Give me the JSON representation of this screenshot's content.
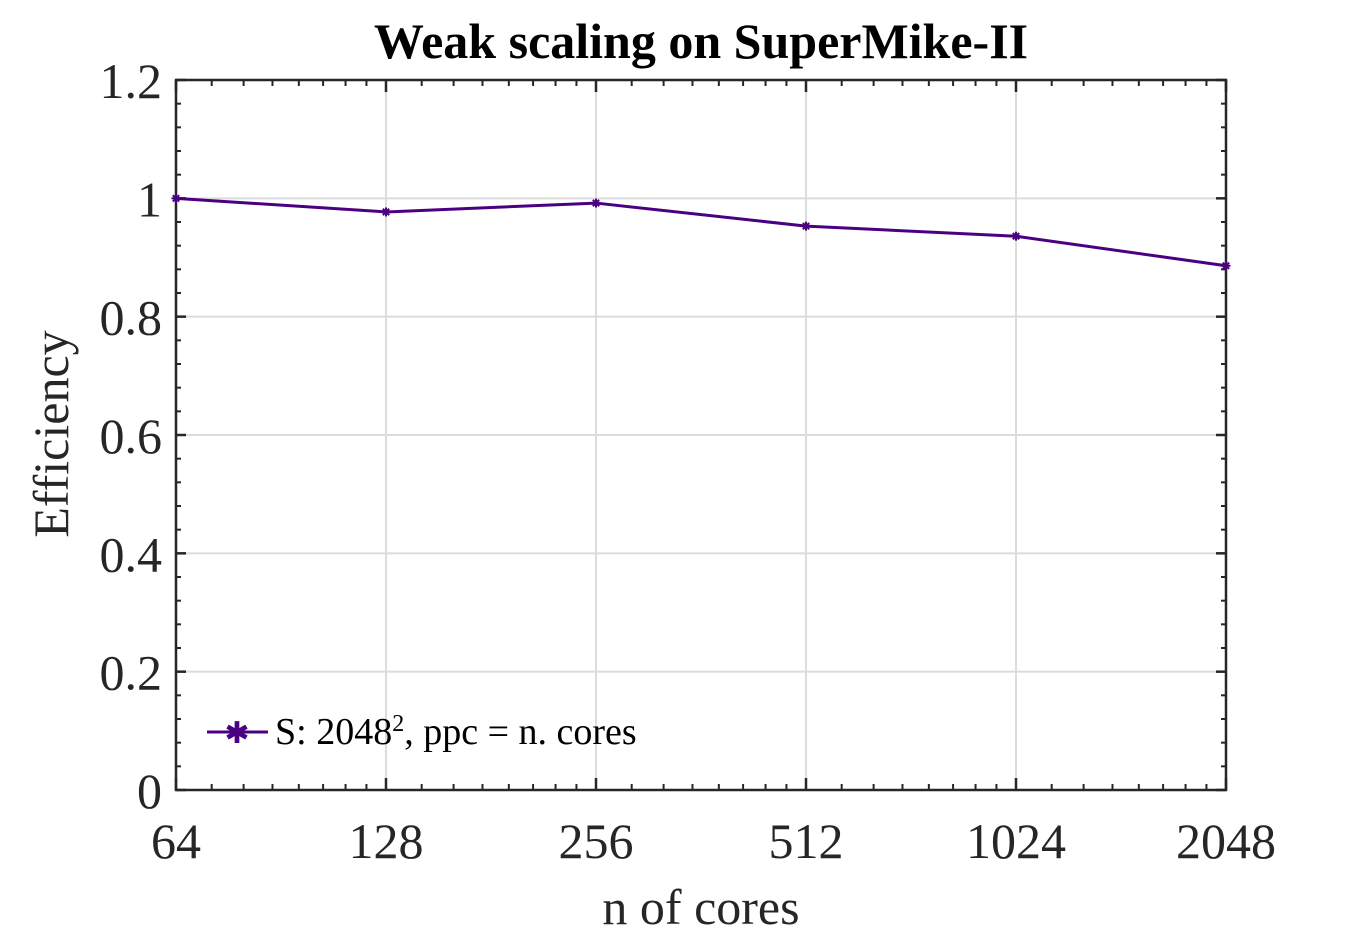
{
  "chart_data": {
    "type": "line",
    "title": "Weak scaling on SuperMike-II",
    "xlabel": "n of cores",
    "ylabel": "Efficiency",
    "x": [
      64,
      128,
      256,
      512,
      1024,
      2048
    ],
    "xtick_labels": [
      "64",
      "128",
      "256",
      "512",
      "1024",
      "2048"
    ],
    "xscale": "log2",
    "yticks": [
      0,
      0.2,
      0.4,
      0.6,
      0.8,
      1,
      1.2
    ],
    "ytick_labels": [
      "0",
      "0.2",
      "0.4",
      "0.6",
      "0.8",
      "1",
      "1.2"
    ],
    "ylim": [
      0,
      1.2
    ],
    "grid": true,
    "legend_position": "bottom-left",
    "series": [
      {
        "legend": {
          "prefix": "S: 2048",
          "sup": "2",
          "suffix": ", ppc = n. cores"
        },
        "values": [
          1.0,
          0.977,
          0.992,
          0.953,
          0.936,
          0.886
        ],
        "color": "#4b0082",
        "marker": "star"
      }
    ]
  }
}
